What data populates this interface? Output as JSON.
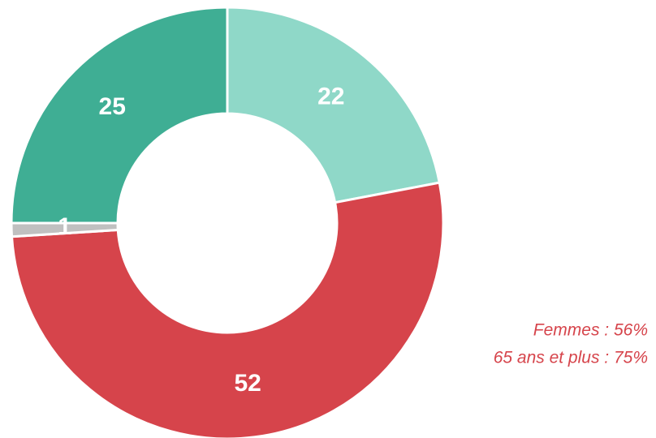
{
  "chart_data": {
    "type": "donut",
    "values": [
      22,
      52,
      1,
      25
    ],
    "colors": [
      "#8fd8c8",
      "#d6444b",
      "#c0c0c0",
      "#3fae94"
    ],
    "annotations": [
      "Femmes : 56%",
      "65 ans et plus : 75%"
    ]
  }
}
